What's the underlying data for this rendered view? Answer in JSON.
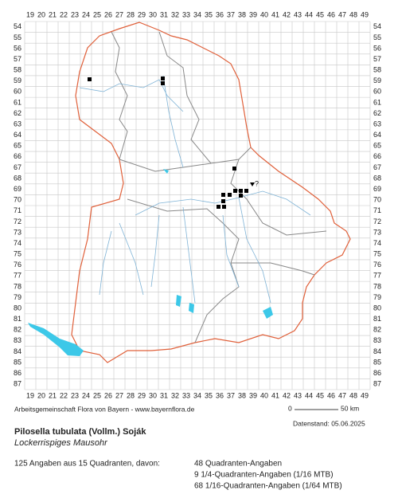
{
  "map": {
    "columns": [
      19,
      20,
      21,
      22,
      23,
      24,
      25,
      26,
      27,
      28,
      29,
      30,
      31,
      32,
      33,
      34,
      35,
      36,
      37,
      38,
      39,
      40,
      41,
      42,
      43,
      44,
      45,
      46,
      47,
      48,
      49
    ],
    "rows": [
      54,
      55,
      56,
      57,
      58,
      59,
      60,
      61,
      62,
      63,
      64,
      65,
      66,
      67,
      68,
      69,
      70,
      71,
      72,
      73,
      74,
      75,
      76,
      77,
      78,
      79,
      80,
      81,
      82,
      83,
      84,
      85,
      86,
      87
    ],
    "uncertain_mark": "?"
  },
  "credit": "Arbeitsgemeinschaft Flora von Bayern - www.bayernflora.de",
  "scale": {
    "start": "0",
    "end": "50 km"
  },
  "date": "Datenstand: 05.06.2025",
  "species": {
    "name": "Pilosella tubulata (Vollm.) Soják",
    "common_name": "Lockerrispiges Mausohr"
  },
  "summary": "125 Angaben aus 15 Quadranten, davon:",
  "breakdown": [
    "48 Quadranten-Angaben",
    "9 1/4-Quadranten-Angaben (1/16 MTB)",
    "68 1/16-Quadranten-Angaben (1/64 MTB)"
  ]
}
